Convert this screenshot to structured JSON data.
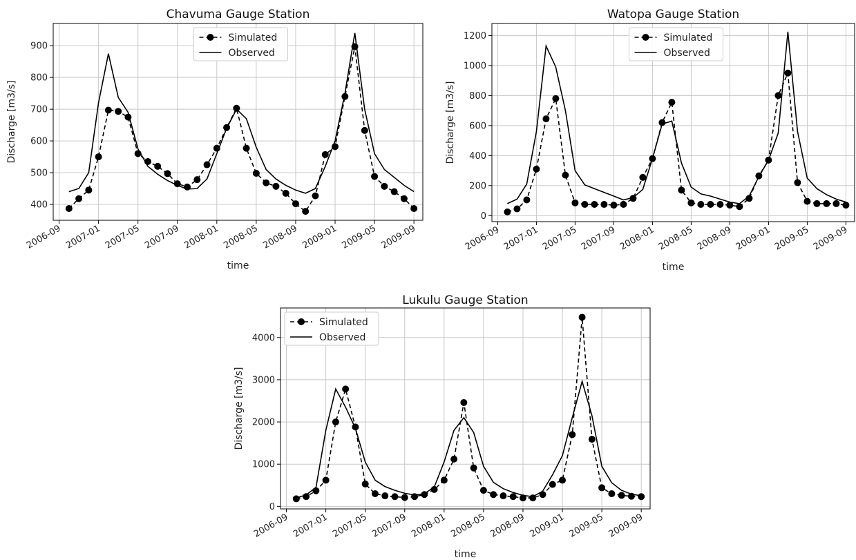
{
  "chart_data": [
    {
      "type": "line",
      "title": "Chavuma Gauge Station",
      "xlabel": "time",
      "ylabel": "Discharge [m3/s]",
      "x": [
        "2006-10",
        "2006-11",
        "2006-12",
        "2007-01",
        "2007-02",
        "2007-03",
        "2007-04",
        "2007-05",
        "2007-06",
        "2007-07",
        "2007-08",
        "2007-09",
        "2007-10",
        "2007-11",
        "2007-12",
        "2008-01",
        "2008-02",
        "2008-03",
        "2008-04",
        "2008-05",
        "2008-06",
        "2008-07",
        "2008-08",
        "2008-09",
        "2008-10",
        "2008-11",
        "2008-12",
        "2009-01",
        "2009-02",
        "2009-03",
        "2009-04",
        "2009-05",
        "2009-06",
        "2009-07",
        "2009-08",
        "2009-09"
      ],
      "series": [
        {
          "name": "Simulated",
          "style": "dashed-dot",
          "values": [
            387,
            418,
            445,
            550,
            697,
            693,
            675,
            560,
            535,
            520,
            497,
            465,
            455,
            478,
            525,
            577,
            642,
            703,
            577,
            498,
            468,
            457,
            435,
            402,
            378,
            427,
            557,
            582,
            740,
            897,
            633,
            488,
            457,
            440,
            418,
            387
          ]
        },
        {
          "name": "Observed",
          "style": "solid",
          "values": [
            440,
            450,
            500,
            720,
            875,
            737,
            690,
            575,
            520,
            495,
            475,
            460,
            448,
            450,
            480,
            560,
            640,
            700,
            670,
            580,
            510,
            480,
            460,
            445,
            435,
            450,
            520,
            600,
            750,
            940,
            700,
            560,
            510,
            485,
            460,
            440
          ]
        }
      ],
      "xticks": [
        "2006-09",
        "2007-01",
        "2007-05",
        "2007-09",
        "2008-01",
        "2008-05",
        "2008-09",
        "2009-01",
        "2009-05",
        "2009-09"
      ],
      "yticks": [
        400,
        500,
        600,
        700,
        800,
        900
      ],
      "ylim": [
        350,
        970
      ],
      "grid": true,
      "legend": "top-center"
    },
    {
      "type": "line",
      "title": "Watopa Gauge Station",
      "xlabel": "time",
      "ylabel": "Discharge [m3/s]",
      "x": [
        "2006-10",
        "2006-11",
        "2006-12",
        "2007-01",
        "2007-02",
        "2007-03",
        "2007-04",
        "2007-05",
        "2007-06",
        "2007-07",
        "2007-08",
        "2007-09",
        "2007-10",
        "2007-11",
        "2007-12",
        "2008-01",
        "2008-02",
        "2008-03",
        "2008-04",
        "2008-05",
        "2008-06",
        "2008-07",
        "2008-08",
        "2008-09",
        "2008-10",
        "2008-11",
        "2008-12",
        "2009-01",
        "2009-02",
        "2009-03",
        "2009-04",
        "2009-05",
        "2009-06",
        "2009-07",
        "2009-08",
        "2009-09"
      ],
      "series": [
        {
          "name": "Simulated",
          "style": "dashed-dot",
          "values": [
            25,
            45,
            105,
            310,
            645,
            780,
            270,
            85,
            75,
            75,
            75,
            70,
            75,
            115,
            255,
            380,
            620,
            755,
            170,
            85,
            75,
            75,
            75,
            70,
            60,
            115,
            265,
            370,
            800,
            950,
            220,
            95,
            80,
            80,
            80,
            70
          ]
        },
        {
          "name": "Observed",
          "style": "solid",
          "values": [
            80,
            110,
            210,
            560,
            1130,
            990,
            700,
            300,
            205,
            180,
            155,
            130,
            105,
            120,
            175,
            380,
            610,
            630,
            350,
            190,
            145,
            130,
            110,
            90,
            80,
            130,
            260,
            370,
            550,
            1225,
            560,
            250,
            180,
            140,
            110,
            90
          ]
        }
      ],
      "xticks": [
        "2006-09",
        "2007-01",
        "2007-05",
        "2007-09",
        "2008-01",
        "2008-05",
        "2008-09",
        "2009-01",
        "2009-05",
        "2009-09"
      ],
      "yticks": [
        0,
        200,
        400,
        600,
        800,
        1000,
        1200
      ],
      "ylim": [
        -40,
        1280
      ],
      "grid": true,
      "legend": "top-center"
    },
    {
      "type": "line",
      "title": "Lukulu Gauge Station",
      "xlabel": "time",
      "ylabel": "Discharge [m3/s]",
      "x": [
        "2006-10",
        "2006-11",
        "2006-12",
        "2007-01",
        "2007-02",
        "2007-03",
        "2007-04",
        "2007-05",
        "2007-06",
        "2007-07",
        "2007-08",
        "2007-09",
        "2007-10",
        "2007-11",
        "2007-12",
        "2008-01",
        "2008-02",
        "2008-03",
        "2008-04",
        "2008-05",
        "2008-06",
        "2008-07",
        "2008-08",
        "2008-09",
        "2008-10",
        "2008-11",
        "2008-12",
        "2009-01",
        "2009-02",
        "2009-03",
        "2009-04",
        "2009-05",
        "2009-06",
        "2009-07",
        "2009-08",
        "2009-09"
      ],
      "series": [
        {
          "name": "Simulated",
          "style": "dashed-dot",
          "values": [
            180,
            230,
            370,
            620,
            2000,
            2780,
            1880,
            530,
            300,
            250,
            230,
            210,
            230,
            280,
            400,
            620,
            1120,
            2460,
            910,
            380,
            280,
            250,
            230,
            200,
            200,
            280,
            520,
            620,
            1700,
            4480,
            1590,
            440,
            300,
            260,
            240,
            230
          ]
        },
        {
          "name": "Observed",
          "style": "solid",
          "values": [
            200,
            270,
            450,
            1800,
            2780,
            2350,
            1850,
            1050,
            620,
            470,
            380,
            310,
            270,
            300,
            460,
            1050,
            1800,
            2100,
            1750,
            950,
            570,
            420,
            330,
            260,
            230,
            360,
            750,
            1200,
            2100,
            2960,
            2150,
            950,
            560,
            380,
            290,
            250
          ]
        }
      ],
      "xticks": [
        "2006-09",
        "2007-01",
        "2007-05",
        "2007-09",
        "2008-01",
        "2008-05",
        "2008-09",
        "2009-01",
        "2009-05",
        "2009-09"
      ],
      "yticks": [
        0,
        1000,
        2000,
        3000,
        4000
      ],
      "ylim": [
        -60,
        4700
      ],
      "grid": true,
      "legend": "top-left"
    }
  ],
  "figure": {
    "background": "#ffffff",
    "line_color": "#000000",
    "grid_color": "#c8c8c8"
  }
}
